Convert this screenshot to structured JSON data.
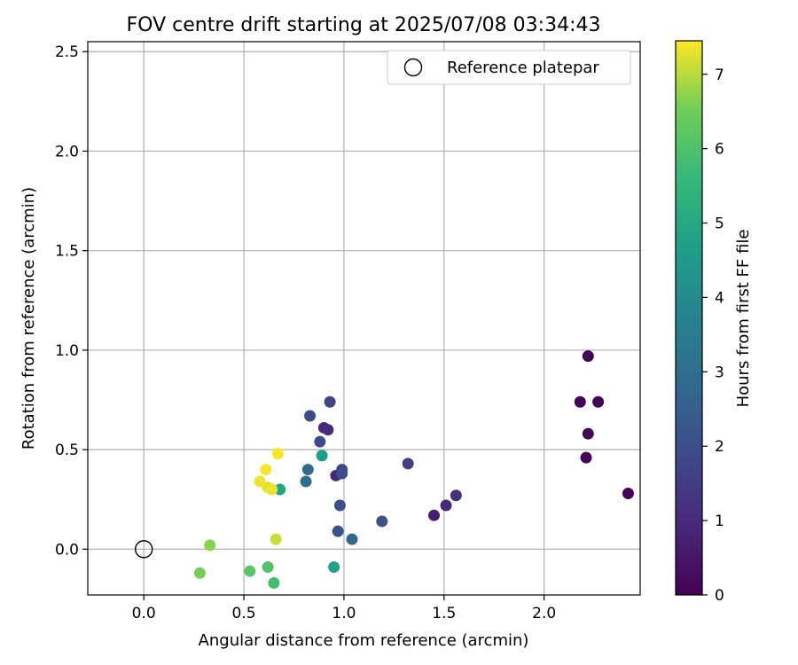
{
  "chart_data": {
    "type": "scatter",
    "title": "FOV centre drift starting at 2025/07/08 03:34:43",
    "xlabel": "Angular distance from reference (arcmin)",
    "ylabel": "Rotation from reference (arcmin)",
    "xlim": [
      -0.28,
      2.48
    ],
    "ylim": [
      -0.23,
      2.55
    ],
    "xticks": [
      0.0,
      0.5,
      1.0,
      1.5,
      2.0
    ],
    "xtick_labels": [
      "0.0",
      "0.5",
      "1.0",
      "1.5",
      "2.0"
    ],
    "yticks": [
      0.0,
      0.5,
      1.0,
      1.5,
      2.0,
      2.5
    ],
    "ytick_labels": [
      "0.0",
      "0.5",
      "1.0",
      "1.5",
      "2.0",
      "2.5"
    ],
    "grid": true,
    "legend": {
      "placement": "top-right",
      "entries": [
        {
          "label": "Reference platepar",
          "marker": "open-circle"
        }
      ]
    },
    "reference_point": {
      "x": 0.0,
      "y": 0.0
    },
    "colorbar": {
      "label": "Hours from first FF file",
      "range": [
        0,
        7.45
      ],
      "ticks": [
        0,
        1,
        2,
        3,
        4,
        5,
        6,
        7
      ],
      "tick_labels": [
        "0",
        "1",
        "2",
        "3",
        "4",
        "5",
        "6",
        "7"
      ],
      "colormap": "viridis"
    },
    "points": [
      {
        "x": 2.22,
        "y": 0.97,
        "hours": 0.0
      },
      {
        "x": 2.18,
        "y": 0.74,
        "hours": 0.05
      },
      {
        "x": 2.27,
        "y": 0.74,
        "hours": 0.05
      },
      {
        "x": 2.22,
        "y": 0.58,
        "hours": 0.1
      },
      {
        "x": 2.21,
        "y": 0.46,
        "hours": 0.1
      },
      {
        "x": 2.42,
        "y": 0.28,
        "hours": 0.1
      },
      {
        "x": 1.45,
        "y": 0.17,
        "hours": 0.7
      },
      {
        "x": 1.51,
        "y": 0.22,
        "hours": 0.95
      },
      {
        "x": 1.56,
        "y": 0.27,
        "hours": 1.15
      },
      {
        "x": 0.9,
        "y": 0.61,
        "hours": 0.95
      },
      {
        "x": 0.92,
        "y": 0.6,
        "hours": 1.05
      },
      {
        "x": 0.96,
        "y": 0.37,
        "hours": 0.95
      },
      {
        "x": 1.32,
        "y": 0.43,
        "hours": 1.65
      },
      {
        "x": 0.93,
        "y": 0.74,
        "hours": 1.75
      },
      {
        "x": 0.83,
        "y": 0.67,
        "hours": 1.95
      },
      {
        "x": 0.88,
        "y": 0.54,
        "hours": 1.85
      },
      {
        "x": 0.99,
        "y": 0.4,
        "hours": 1.9
      },
      {
        "x": 0.99,
        "y": 0.38,
        "hours": 2.0
      },
      {
        "x": 0.98,
        "y": 0.22,
        "hours": 2.05
      },
      {
        "x": 1.19,
        "y": 0.14,
        "hours": 2.15
      },
      {
        "x": 0.97,
        "y": 0.09,
        "hours": 2.2
      },
      {
        "x": 1.04,
        "y": 0.05,
        "hours": 2.8
      },
      {
        "x": 0.82,
        "y": 0.4,
        "hours": 2.95
      },
      {
        "x": 0.81,
        "y": 0.34,
        "hours": 3.05
      },
      {
        "x": 0.89,
        "y": 0.47,
        "hours": 4.7
      },
      {
        "x": 0.68,
        "y": 0.3,
        "hours": 4.9
      },
      {
        "x": 0.95,
        "y": -0.09,
        "hours": 4.75
      },
      {
        "x": 0.65,
        "y": -0.17,
        "hours": 5.85
      },
      {
        "x": 0.62,
        "y": -0.09,
        "hours": 6.05
      },
      {
        "x": 0.53,
        "y": -0.11,
        "hours": 6.2
      },
      {
        "x": 0.28,
        "y": -0.12,
        "hours": 6.55
      },
      {
        "x": 0.33,
        "y": 0.02,
        "hours": 6.7
      },
      {
        "x": 0.66,
        "y": 0.05,
        "hours": 7.1
      },
      {
        "x": 0.62,
        "y": 0.31,
        "hours": 7.25
      },
      {
        "x": 0.64,
        "y": 0.3,
        "hours": 7.35
      },
      {
        "x": 0.58,
        "y": 0.34,
        "hours": 7.35
      },
      {
        "x": 0.61,
        "y": 0.4,
        "hours": 7.4
      },
      {
        "x": 0.67,
        "y": 0.48,
        "hours": 7.45
      }
    ]
  }
}
